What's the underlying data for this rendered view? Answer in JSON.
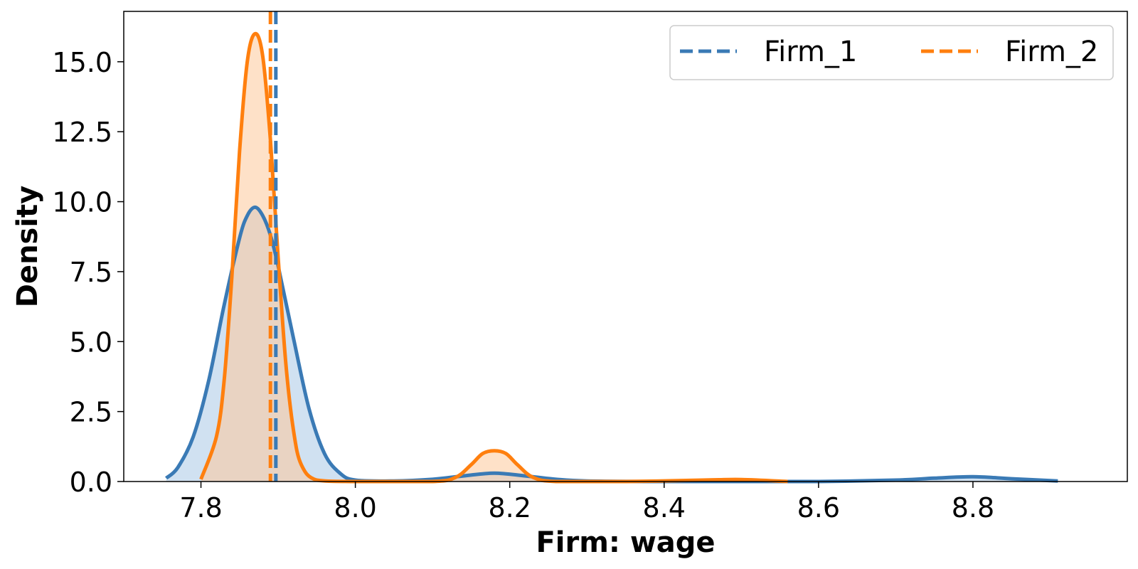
{
  "chart_data": {
    "type": "area",
    "xlabel": "Firm: wage",
    "ylabel": "Density",
    "xlim": [
      7.7,
      9.0
    ],
    "ylim": [
      0,
      16.8
    ],
    "xticks": [
      "7.8",
      "8.0",
      "8.2",
      "8.4",
      "8.6",
      "8.8"
    ],
    "yticks": [
      "0.0",
      "2.5",
      "5.0",
      "7.5",
      "10.0",
      "12.5",
      "15.0"
    ],
    "grid": false,
    "legend_position": "top-right",
    "legend": [
      {
        "label": "Firm_1",
        "color": "#3a7ab5",
        "style": "dashed"
      },
      {
        "label": "Firm_2",
        "color": "#ff7f0e",
        "style": "dashed"
      }
    ],
    "series": [
      {
        "name": "Firm_1",
        "color": "#3a7ab5",
        "fill": "#a9c8e6",
        "x": [
          7.755,
          7.77,
          7.79,
          7.81,
          7.83,
          7.85,
          7.86,
          7.87,
          7.88,
          7.89,
          7.9,
          7.92,
          7.94,
          7.96,
          7.98,
          8.0,
          8.05,
          8.1,
          8.14,
          8.18,
          8.22,
          8.26,
          8.3,
          8.4,
          8.5,
          8.6,
          8.7,
          8.75,
          8.8,
          8.85,
          8.91
        ],
        "y": [
          0.12,
          0.5,
          1.6,
          3.6,
          6.3,
          8.7,
          9.5,
          9.8,
          9.5,
          8.8,
          7.7,
          5.1,
          2.6,
          1.0,
          0.3,
          0.05,
          0.02,
          0.08,
          0.2,
          0.3,
          0.2,
          0.08,
          0.02,
          0.0,
          0.0,
          0.0,
          0.05,
          0.12,
          0.17,
          0.1,
          0.02
        ]
      },
      {
        "name": "Firm_2",
        "color": "#ff7f0e",
        "fill": "#fdc89b",
        "x": [
          7.8,
          7.82,
          7.83,
          7.84,
          7.85,
          7.86,
          7.87,
          7.88,
          7.89,
          7.9,
          7.91,
          7.92,
          7.93,
          7.95,
          8.0,
          8.1,
          8.13,
          8.15,
          8.165,
          8.18,
          8.195,
          8.21,
          8.23,
          8.26,
          8.35,
          8.45,
          8.5,
          8.56
        ],
        "y": [
          0.08,
          1.6,
          3.6,
          7.3,
          11.8,
          15.0,
          16.0,
          15.2,
          12.2,
          8.0,
          4.2,
          1.8,
          0.6,
          0.05,
          0.0,
          0.0,
          0.15,
          0.6,
          1.0,
          1.1,
          1.0,
          0.6,
          0.15,
          0.0,
          0.0,
          0.05,
          0.07,
          0.0
        ]
      }
    ],
    "mean_lines": [
      {
        "series": "Firm_1",
        "x": 7.897,
        "color": "#3a7ab5"
      },
      {
        "series": "Firm_2",
        "x": 7.89,
        "color": "#ff7f0e"
      }
    ]
  }
}
